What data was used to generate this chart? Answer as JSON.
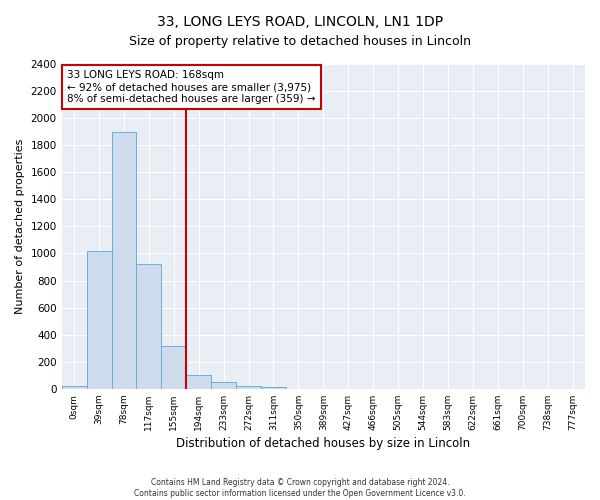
{
  "title": "33, LONG LEYS ROAD, LINCOLN, LN1 1DP",
  "subtitle": "Size of property relative to detached houses in Lincoln",
  "xlabel": "Distribution of detached houses by size in Lincoln",
  "ylabel": "Number of detached properties",
  "bin_labels": [
    "0sqm",
    "39sqm",
    "78sqm",
    "117sqm",
    "155sqm",
    "194sqm",
    "233sqm",
    "272sqm",
    "311sqm",
    "350sqm",
    "389sqm",
    "427sqm",
    "466sqm",
    "505sqm",
    "544sqm",
    "583sqm",
    "622sqm",
    "661sqm",
    "700sqm",
    "738sqm",
    "777sqm"
  ],
  "bar_values": [
    20,
    1020,
    1900,
    920,
    320,
    105,
    50,
    20,
    10,
    0,
    0,
    0,
    0,
    0,
    0,
    0,
    0,
    0,
    0,
    0,
    0
  ],
  "bar_color": "#cddcec",
  "bar_edge_color": "#6aaed6",
  "vline_x": 4.5,
  "vline_color": "#cc0000",
  "annotation_title": "33 LONG LEYS ROAD: 168sqm",
  "annotation_line1": "← 92% of detached houses are smaller (3,975)",
  "annotation_line2": "8% of semi-detached houses are larger (359) →",
  "annotation_box_color": "#ffffff",
  "annotation_box_edge": "#cc0000",
  "ylim": [
    0,
    2400
  ],
  "yticks": [
    0,
    200,
    400,
    600,
    800,
    1000,
    1200,
    1400,
    1600,
    1800,
    2000,
    2200,
    2400
  ],
  "footnote1": "Contains HM Land Registry data © Crown copyright and database right 2024.",
  "footnote2": "Contains public sector information licensed under the Open Government Licence v3.0.",
  "bg_color": "#ffffff",
  "plot_bg_color": "#e8eef4",
  "grid_color": "#ffffff"
}
